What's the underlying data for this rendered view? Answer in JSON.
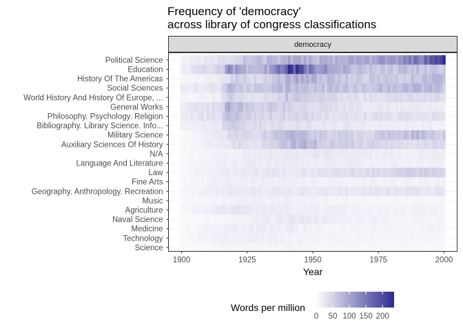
{
  "chart_data": {
    "type": "heatmap",
    "title_lines": [
      "Frequency of 'democracy'",
      "across library of congress classifications"
    ],
    "facet_label": "democracy",
    "xlabel": "Year",
    "ylabel": "",
    "xlim": [
      1895,
      2005
    ],
    "x_ticks": [
      1900,
      1925,
      1950,
      1975,
      2000
    ],
    "x_tick_labels": [
      "1900",
      "1925",
      "1950",
      "1975",
      "2000"
    ],
    "year_start": 1900,
    "year_end": 2000,
    "categories": [
      "Political Science",
      "Education",
      "History Of The Americas",
      "Social Sciences",
      "World History And History Of Europe, ...",
      "General Works",
      "Philosophy.  Psychology.  Religion",
      "Bibliography.  Library Science.  Info...",
      "Military Science",
      "Auxiliary Sciences Of History",
      "N/A",
      "Language And Literature",
      "Law",
      "Fine Arts",
      "Geography.  Anthropology.  Recreation",
      "Music",
      "Agriculture",
      "Naval Science",
      "Medicine",
      "Technology",
      "Science"
    ],
    "legend": {
      "title": "Words per million",
      "ticks": [
        0,
        50,
        100,
        150,
        200
      ],
      "tick_labels": [
        "0",
        "50",
        "100",
        "150",
        "200"
      ],
      "range": [
        0,
        235
      ],
      "position": "bottom"
    },
    "colors": {
      "low": "#ffffff",
      "high": "#2e2a8f",
      "panel_bg": "#ffffff",
      "strip_bg": "#d9d9d9",
      "grid": "#ebebeb"
    },
    "series": [
      {
        "name": "Political Science",
        "knots": [
          [
            1900,
            8
          ],
          [
            1915,
            18
          ],
          [
            1925,
            45
          ],
          [
            1935,
            55
          ],
          [
            1940,
            70
          ],
          [
            1950,
            60
          ],
          [
            1960,
            62
          ],
          [
            1970,
            80
          ],
          [
            1980,
            95
          ],
          [
            1990,
            120
          ],
          [
            1995,
            160
          ],
          [
            2000,
            230
          ]
        ]
      },
      {
        "name": "Education",
        "knots": [
          [
            1900,
            10
          ],
          [
            1910,
            28
          ],
          [
            1916,
            35
          ],
          [
            1918,
            110
          ],
          [
            1922,
            75
          ],
          [
            1928,
            60
          ],
          [
            1935,
            85
          ],
          [
            1940,
            190
          ],
          [
            1942,
            215
          ],
          [
            1946,
            150
          ],
          [
            1955,
            90
          ],
          [
            1965,
            55
          ],
          [
            1975,
            45
          ],
          [
            1990,
            50
          ],
          [
            2000,
            40
          ]
        ]
      },
      {
        "name": "History Of The Americas",
        "knots": [
          [
            1900,
            5
          ],
          [
            1915,
            12
          ],
          [
            1920,
            35
          ],
          [
            1930,
            30
          ],
          [
            1940,
            55
          ],
          [
            1945,
            70
          ],
          [
            1955,
            50
          ],
          [
            1970,
            38
          ],
          [
            1985,
            45
          ],
          [
            2000,
            55
          ]
        ]
      },
      {
        "name": "Social Sciences",
        "knots": [
          [
            1900,
            10
          ],
          [
            1915,
            20
          ],
          [
            1918,
            70
          ],
          [
            1925,
            35
          ],
          [
            1940,
            55
          ],
          [
            1950,
            50
          ],
          [
            1965,
            45
          ],
          [
            1980,
            50
          ],
          [
            1990,
            60
          ],
          [
            2000,
            45
          ]
        ]
      },
      {
        "name": "World History And History Of Europe, ...",
        "knots": [
          [
            1900,
            5
          ],
          [
            1915,
            10
          ],
          [
            1918,
            35
          ],
          [
            1925,
            18
          ],
          [
            1935,
            25
          ],
          [
            1940,
            45
          ],
          [
            1950,
            35
          ],
          [
            1965,
            20
          ],
          [
            1985,
            22
          ],
          [
            2000,
            25
          ]
        ]
      },
      {
        "name": "General Works",
        "knots": [
          [
            1900,
            10
          ],
          [
            1915,
            25
          ],
          [
            1918,
            75
          ],
          [
            1925,
            40
          ],
          [
            1940,
            35
          ],
          [
            1950,
            25
          ],
          [
            1970,
            15
          ],
          [
            2000,
            12
          ]
        ]
      },
      {
        "name": "Philosophy.  Psychology.  Religion",
        "knots": [
          [
            1900,
            12
          ],
          [
            1915,
            25
          ],
          [
            1918,
            60
          ],
          [
            1925,
            30
          ],
          [
            1940,
            30
          ],
          [
            1960,
            20
          ],
          [
            2000,
            20
          ]
        ]
      },
      {
        "name": "Bibliography.  Library Science.  Info...",
        "knots": [
          [
            1900,
            8
          ],
          [
            1915,
            15
          ],
          [
            1918,
            50
          ],
          [
            1925,
            25
          ],
          [
            1945,
            20
          ],
          [
            1970,
            12
          ],
          [
            2000,
            10
          ]
        ]
      },
      {
        "name": "Military Science",
        "knots": [
          [
            1900,
            3
          ],
          [
            1915,
            12
          ],
          [
            1920,
            30
          ],
          [
            1930,
            25
          ],
          [
            1941,
            70
          ],
          [
            1950,
            40
          ],
          [
            1970,
            30
          ],
          [
            1990,
            55
          ],
          [
            2000,
            35
          ]
        ]
      },
      {
        "name": "Auxiliary Sciences Of History",
        "knots": [
          [
            1900,
            3
          ],
          [
            1915,
            12
          ],
          [
            1920,
            25
          ],
          [
            1930,
            20
          ],
          [
            1945,
            65
          ],
          [
            1955,
            40
          ],
          [
            1970,
            30
          ],
          [
            2000,
            25
          ]
        ]
      },
      {
        "name": "N/A",
        "knots": [
          [
            1900,
            3
          ],
          [
            1920,
            10
          ],
          [
            1940,
            15
          ],
          [
            1960,
            12
          ],
          [
            2000,
            10
          ]
        ]
      },
      {
        "name": "Language And Literature",
        "knots": [
          [
            1900,
            4
          ],
          [
            1920,
            10
          ],
          [
            1940,
            12
          ],
          [
            1960,
            10
          ],
          [
            2000,
            8
          ]
        ]
      },
      {
        "name": "Law",
        "knots": [
          [
            1900,
            4
          ],
          [
            1920,
            12
          ],
          [
            1940,
            15
          ],
          [
            1960,
            20
          ],
          [
            1980,
            30
          ],
          [
            1995,
            35
          ],
          [
            2000,
            30
          ]
        ]
      },
      {
        "name": "Fine Arts",
        "knots": [
          [
            1900,
            3
          ],
          [
            1918,
            10
          ],
          [
            1940,
            10
          ],
          [
            1960,
            8
          ],
          [
            2000,
            8
          ]
        ]
      },
      {
        "name": "Geography.  Anthropology.  Recreation",
        "knots": [
          [
            1900,
            4
          ],
          [
            1918,
            12
          ],
          [
            1940,
            14
          ],
          [
            1960,
            14
          ],
          [
            1990,
            18
          ],
          [
            2000,
            15
          ]
        ]
      },
      {
        "name": "Music",
        "knots": [
          [
            1900,
            3
          ],
          [
            1920,
            8
          ],
          [
            1940,
            10
          ],
          [
            1960,
            6
          ],
          [
            2000,
            5
          ]
        ]
      },
      {
        "name": "Agriculture",
        "knots": [
          [
            1900,
            4
          ],
          [
            1918,
            15
          ],
          [
            1935,
            12
          ],
          [
            1950,
            10
          ],
          [
            1970,
            8
          ],
          [
            2000,
            8
          ]
        ]
      },
      {
        "name": "Naval Science",
        "knots": [
          [
            1900,
            2
          ],
          [
            1920,
            6
          ],
          [
            1942,
            15
          ],
          [
            1960,
            8
          ],
          [
            2000,
            6
          ]
        ]
      },
      {
        "name": "Medicine",
        "knots": [
          [
            1900,
            3
          ],
          [
            1918,
            10
          ],
          [
            1940,
            10
          ],
          [
            1960,
            6
          ],
          [
            2000,
            6
          ]
        ]
      },
      {
        "name": "Technology",
        "knots": [
          [
            1900,
            3
          ],
          [
            1918,
            10
          ],
          [
            1940,
            8
          ],
          [
            1960,
            6
          ],
          [
            2000,
            5
          ]
        ]
      },
      {
        "name": "Science",
        "knots": [
          [
            1900,
            2
          ],
          [
            1918,
            6
          ],
          [
            1940,
            6
          ],
          [
            1960,
            5
          ],
          [
            2000,
            4
          ]
        ]
      }
    ]
  }
}
